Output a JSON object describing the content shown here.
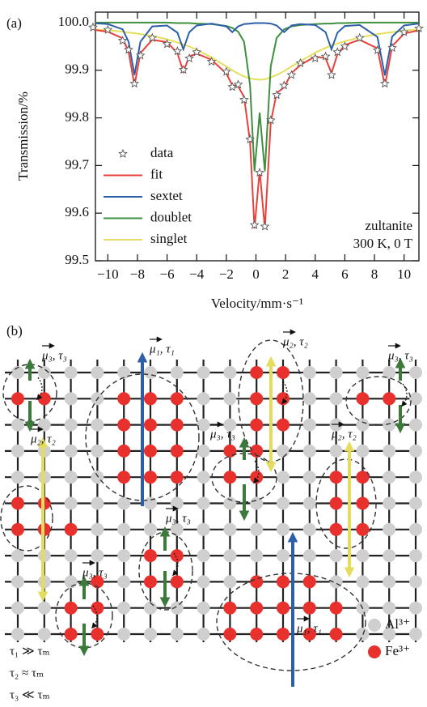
{
  "chart_data": {
    "type": "line",
    "panel_label": "(a)",
    "xlabel": "Velocity/mm·s⁻¹",
    "ylabel": "Transmission/%",
    "annotations": [
      "zultanite",
      "300 K, 0 T"
    ],
    "legend": "center left",
    "x": [
      -11,
      -10,
      -9,
      -8.6,
      -8.2,
      -7.8,
      -7,
      -6,
      -5.3,
      -4.9,
      -4.5,
      -4,
      -3,
      -2,
      -1.6,
      -1.2,
      -0.8,
      -0.4,
      -0.1,
      0.25,
      0.6,
      1,
      1.4,
      1.9,
      2.4,
      3,
      4,
      4.7,
      5.1,
      5.5,
      6,
      7,
      8.2,
      8.7,
      9.2,
      10,
      11
    ],
    "series": [
      {
        "name": "data",
        "type": "scatter",
        "color": "#555555",
        "values": [
          99.99,
          99.985,
          99.962,
          99.943,
          99.872,
          99.931,
          99.968,
          99.955,
          99.94,
          99.901,
          99.925,
          99.938,
          99.918,
          99.897,
          99.865,
          99.87,
          99.838,
          99.755,
          99.575,
          99.685,
          99.572,
          99.795,
          99.848,
          99.868,
          99.89,
          99.915,
          99.925,
          99.929,
          99.89,
          99.938,
          99.95,
          99.968,
          99.942,
          99.872,
          99.947,
          99.98,
          99.988
        ]
      },
      {
        "name": "fit",
        "color": "#e8413c",
        "values": [
          99.985,
          99.981,
          99.967,
          99.939,
          99.868,
          99.936,
          99.964,
          99.959,
          99.936,
          99.897,
          99.929,
          99.935,
          99.922,
          99.893,
          99.869,
          99.866,
          99.844,
          99.75,
          99.568,
          99.69,
          99.568,
          99.791,
          99.852,
          99.864,
          99.894,
          99.911,
          99.929,
          99.925,
          99.894,
          99.934,
          99.953,
          99.964,
          99.946,
          99.867,
          99.951,
          99.977,
          99.984
        ]
      },
      {
        "name": "sextet",
        "color": "#2d5fa8",
        "values": [
          99.999,
          99.997,
          99.986,
          99.96,
          99.89,
          99.96,
          99.992,
          99.994,
          99.979,
          99.944,
          99.98,
          99.994,
          99.998,
          99.992,
          99.98,
          99.992,
          99.997,
          99.998,
          99.999,
          99.999,
          99.999,
          99.998,
          99.994,
          99.98,
          99.994,
          99.997,
          99.995,
          99.98,
          99.944,
          99.979,
          99.993,
          99.995,
          99.97,
          99.889,
          99.971,
          99.994,
          99.998
        ]
      },
      {
        "name": "doublet",
        "color": "#3f8f3f",
        "values": [
          100.0,
          100.0,
          100.0,
          100.0,
          100.0,
          100.0,
          100.0,
          100.0,
          99.999,
          99.999,
          99.999,
          99.998,
          99.997,
          99.993,
          99.989,
          99.981,
          99.96,
          99.869,
          99.688,
          99.811,
          99.688,
          99.908,
          99.968,
          99.986,
          99.992,
          99.995,
          99.997,
          99.998,
          99.998,
          99.999,
          99.999,
          100.0,
          100.0,
          100.0,
          100.0,
          100.0,
          100.0
        ]
      },
      {
        "name": "singlet",
        "color": "#e6df5c",
        "values": [
          99.986,
          99.984,
          99.981,
          99.979,
          99.978,
          99.976,
          99.972,
          99.965,
          99.958,
          99.954,
          99.95,
          99.943,
          99.927,
          99.908,
          99.9,
          99.893,
          99.887,
          99.883,
          99.881,
          99.88,
          99.881,
          99.885,
          99.89,
          99.898,
          99.908,
          99.919,
          99.937,
          99.947,
          99.952,
          99.956,
          99.961,
          99.969,
          99.976,
          99.978,
          99.98,
          99.983,
          99.986
        ]
      }
    ],
    "xlim": [
      -11,
      11
    ],
    "xticks": [
      {
        "value": -10,
        "label": "−10"
      },
      {
        "value": -8,
        "label": "−8"
      },
      {
        "value": -6,
        "label": "−6"
      },
      {
        "value": -4,
        "label": "−4"
      },
      {
        "value": -2,
        "label": "−2"
      },
      0,
      2,
      4,
      6,
      8,
      10
    ],
    "ylim": [
      99.5,
      100.022
    ],
    "yticks": [
      99.5,
      99.6,
      99.7,
      99.8,
      99.9,
      {
        "value": 100,
        "label": "100.0"
      }
    ]
  },
  "diagram": {
    "panel_label": "(b)",
    "labels": [
      "μ₃, τ₃",
      "μ₁, τ₁",
      "μ₂, τ₂",
      "μ₃, τ₃",
      "μ₂, τ₂",
      "μ₃, τ₃",
      "μ₂, τ₂",
      "μ₃, τ₃",
      "μ₃, τ₃",
      "μ₁, τ₁"
    ],
    "notes": [
      "τ₁ ≫ τₘ",
      "τ₂ ≈ τₘ",
      "τ₃ ≪ τₘ"
    ],
    "legend": [
      "Al³⁺",
      "Fe³⁺"
    ]
  }
}
